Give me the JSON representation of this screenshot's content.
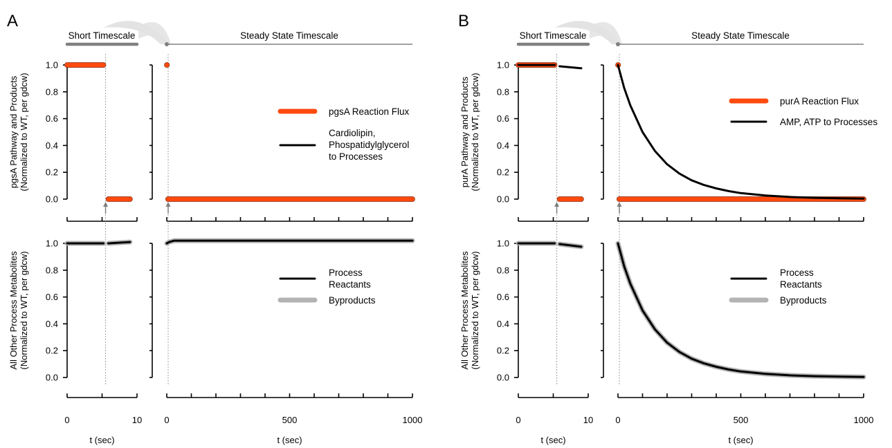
{
  "colors": {
    "flux": "#ff4a0f",
    "black": "#000000",
    "byproduct": "#b3b3b3",
    "timescale_bar": "#808080",
    "arrow": "#7f7f7f"
  },
  "shared": {
    "short_timescale": "Short Timescale",
    "steady_timescale": "Steady State Timescale",
    "xlabel": "t (sec)",
    "bottom_ylabel_1": "All Other Process Metabolites",
    "bottom_ylabel_2": "(Normalized to WT, per gdcw)"
  },
  "chart_data": [
    {
      "panel": "A",
      "type": "line",
      "ylabel_top_1": "pgsA Pathway and Products",
      "ylabel_top_2": "(Normalized to WT, per gdcw)",
      "yticks": [
        "1.0",
        "0.8",
        "0.6",
        "0.4",
        "0.2",
        "0.0"
      ],
      "ylim": [
        0,
        1
      ],
      "short_xlim": [
        0,
        10
      ],
      "short_xticks": [
        "0",
        "10"
      ],
      "long_xlim": [
        0,
        1000
      ],
      "long_xticks": [
        "0",
        "500",
        "1000"
      ],
      "perturbation_time": 5.5,
      "legend_top": [
        "pgsA Reaction Flux",
        "Cardiolipin,",
        "Phospatidylglycerol",
        "to Processes"
      ],
      "legend_bottom": [
        "Process",
        "Reactants",
        "Byproducts"
      ],
      "top_series": [
        {
          "name": "pgsA Reaction Flux",
          "role": "flux",
          "short": [
            [
              0,
              1.0
            ],
            [
              5.2,
              1.0
            ],
            [
              null,
              null
            ],
            [
              5.9,
              0.0
            ],
            [
              9.0,
              0.0
            ]
          ],
          "long": [
            [
              0,
              1.0
            ],
            [
              1,
              1.0
            ],
            [
              null,
              null
            ],
            [
              5,
              0.0
            ],
            [
              1000,
              0.0
            ]
          ]
        },
        {
          "name": "Cardiolipin, Phospatidylglycerol to Processes",
          "role": "product",
          "short": [
            [
              0,
              1.0
            ],
            [
              5.2,
              1.0
            ],
            [
              null,
              null
            ],
            [
              5.9,
              0.0
            ],
            [
              9.0,
              0.0
            ]
          ],
          "long": [
            [
              0,
              1.0
            ],
            [
              1,
              1.0
            ],
            [
              null,
              null
            ],
            [
              5,
              0.0
            ],
            [
              1000,
              0.0
            ]
          ]
        }
      ],
      "bottom_series": [
        {
          "name": "Byproducts",
          "role": "byproduct",
          "short": [
            [
              0,
              1.0
            ],
            [
              5.2,
              1.0
            ],
            [
              null,
              null
            ],
            [
              5.9,
              1.0
            ],
            [
              7.5,
              1.005
            ],
            [
              9.0,
              1.01
            ]
          ],
          "long": [
            [
              0,
              1.0
            ],
            [
              10,
              1.01
            ],
            [
              30,
              1.02
            ],
            [
              100,
              1.02
            ],
            [
              1000,
              1.02
            ]
          ]
        },
        {
          "name": "Process Reactants",
          "role": "reactant",
          "short": [
            [
              0,
              1.0
            ],
            [
              5.2,
              1.0
            ],
            [
              null,
              null
            ],
            [
              5.9,
              1.0
            ],
            [
              7.5,
              1.005
            ],
            [
              9.0,
              1.01
            ]
          ],
          "long": [
            [
              0,
              1.0
            ],
            [
              10,
              1.01
            ],
            [
              30,
              1.02
            ],
            [
              100,
              1.02
            ],
            [
              1000,
              1.02
            ]
          ]
        }
      ]
    },
    {
      "panel": "B",
      "type": "line",
      "ylabel_top_1": "purA Pathway and Products",
      "ylabel_top_2": "(Normalized to WT, per gdcw)",
      "yticks": [
        "1.0",
        "0.8",
        "0.6",
        "0.4",
        "0.2",
        "0.0"
      ],
      "ylim": [
        0,
        1
      ],
      "short_xlim": [
        0,
        10
      ],
      "short_xticks": [
        "0",
        "10"
      ],
      "long_xlim": [
        0,
        1000
      ],
      "long_xticks": [
        "0",
        "500",
        "1000"
      ],
      "perturbation_time": 5.5,
      "legend_top": [
        "purA Reaction Flux",
        "AMP, ATP to Processes"
      ],
      "legend_bottom": [
        "Process",
        "Reactants",
        "Byproducts"
      ],
      "top_series": [
        {
          "name": "purA Reaction Flux",
          "role": "flux",
          "short": [
            [
              0,
              1.0
            ],
            [
              5.2,
              1.0
            ],
            [
              null,
              null
            ],
            [
              5.9,
              0.0
            ],
            [
              9.0,
              0.0
            ]
          ],
          "long": [
            [
              0,
              1.0
            ],
            [
              1,
              1.0
            ],
            [
              null,
              null
            ],
            [
              5,
              0.0
            ],
            [
              1000,
              0.0
            ]
          ]
        },
        {
          "name": "AMP, ATP to Processes",
          "role": "product",
          "short": [
            [
              0,
              1.0
            ],
            [
              5.2,
              1.0
            ],
            [
              null,
              null
            ],
            [
              5.9,
              0.99
            ],
            [
              9.0,
              0.975
            ]
          ],
          "long": [
            [
              0,
              1.0
            ],
            [
              25,
              0.83
            ],
            [
              50,
              0.7
            ],
            [
              100,
              0.5
            ],
            [
              150,
              0.36
            ],
            [
              200,
              0.26
            ],
            [
              250,
              0.19
            ],
            [
              300,
              0.14
            ],
            [
              350,
              0.105
            ],
            [
              400,
              0.08
            ],
            [
              450,
              0.06
            ],
            [
              500,
              0.045
            ],
            [
              600,
              0.027
            ],
            [
              700,
              0.016
            ],
            [
              800,
              0.01
            ],
            [
              900,
              0.006
            ],
            [
              1000,
              0.004
            ]
          ]
        }
      ],
      "bottom_series": [
        {
          "name": "Byproducts",
          "role": "byproduct",
          "short": [
            [
              0,
              1.0
            ],
            [
              5.2,
              1.0
            ],
            [
              null,
              null
            ],
            [
              5.9,
              0.995
            ],
            [
              9.0,
              0.975
            ]
          ],
          "long": [
            [
              0,
              1.0
            ],
            [
              25,
              0.83
            ],
            [
              50,
              0.7
            ],
            [
              100,
              0.5
            ],
            [
              150,
              0.36
            ],
            [
              200,
              0.26
            ],
            [
              250,
              0.19
            ],
            [
              300,
              0.14
            ],
            [
              350,
              0.105
            ],
            [
              400,
              0.08
            ],
            [
              450,
              0.06
            ],
            [
              500,
              0.045
            ],
            [
              600,
              0.027
            ],
            [
              700,
              0.016
            ],
            [
              800,
              0.01
            ],
            [
              900,
              0.006
            ],
            [
              1000,
              0.004
            ]
          ]
        },
        {
          "name": "Process Reactants",
          "role": "reactant",
          "short": [
            [
              0,
              1.0
            ],
            [
              5.2,
              1.0
            ],
            [
              null,
              null
            ],
            [
              5.9,
              0.995
            ],
            [
              9.0,
              0.975
            ]
          ],
          "long": [
            [
              0,
              1.0
            ],
            [
              25,
              0.83
            ],
            [
              50,
              0.7
            ],
            [
              100,
              0.5
            ],
            [
              150,
              0.36
            ],
            [
              200,
              0.26
            ],
            [
              250,
              0.19
            ],
            [
              300,
              0.14
            ],
            [
              350,
              0.105
            ],
            [
              400,
              0.08
            ],
            [
              450,
              0.06
            ],
            [
              500,
              0.045
            ],
            [
              600,
              0.027
            ],
            [
              700,
              0.016
            ],
            [
              800,
              0.01
            ],
            [
              900,
              0.006
            ],
            [
              1000,
              0.004
            ]
          ]
        }
      ]
    }
  ]
}
